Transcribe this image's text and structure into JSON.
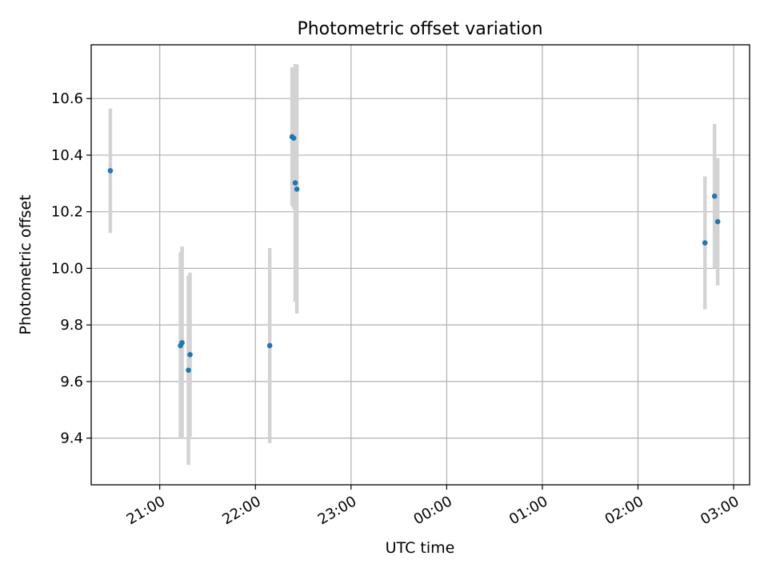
{
  "chart_data": {
    "type": "scatter",
    "title": "Photometric offset variation",
    "xlabel": "UTC time",
    "ylabel": "Photometric offset",
    "x_tick_labels": [
      "21:00",
      "22:00",
      "23:00",
      "00:00",
      "01:00",
      "02:00",
      "03:00"
    ],
    "y_tick_labels": [
      "9.4",
      "9.6",
      "9.8",
      "10.0",
      "10.2",
      "10.4",
      "10.6"
    ],
    "y_ticks": [
      9.4,
      9.6,
      9.8,
      10.0,
      10.2,
      10.4,
      10.6
    ],
    "xlim": [
      "20:17",
      "03:10 (+1 day)"
    ],
    "ylim": [
      9.235,
      10.79
    ],
    "grid": true,
    "marker_color": "#1f77b4",
    "errorbar_color": "#d3d3d3",
    "points": [
      {
        "time": "20:29",
        "y": 10.345,
        "err": 0.22
      },
      {
        "time": "21:13",
        "y": 9.727,
        "err": 0.33
      },
      {
        "time": "21:14",
        "y": 9.737,
        "err": 0.34
      },
      {
        "time": "21:18",
        "y": 9.64,
        "err": 0.335
      },
      {
        "time": "21:19",
        "y": 9.695,
        "err": 0.29
      },
      {
        "time": "22:09",
        "y": 9.727,
        "err": 0.345
      },
      {
        "time": "22:23",
        "y": 10.465,
        "err": 0.245
      },
      {
        "time": "22:24",
        "y": 10.46,
        "err": 0.25
      },
      {
        "time": "22:25",
        "y": 10.302,
        "err": 0.42
      },
      {
        "time": "22:26",
        "y": 10.28,
        "err": 0.44
      },
      {
        "time": "02:42",
        "y": 10.09,
        "err": 0.235
      },
      {
        "time": "02:48",
        "y": 10.255,
        "err": 0.255
      },
      {
        "time": "02:50",
        "y": 10.165,
        "err": 0.225
      }
    ]
  }
}
